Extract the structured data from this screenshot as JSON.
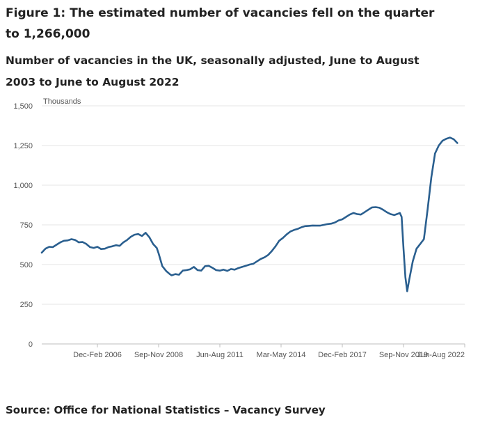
{
  "chart_data": {
    "type": "line",
    "title": "Figure 1: The estimated number of vacancies fell on the quarter to 1,266,000",
    "subtitle": "Number of vacancies in the UK, seasonally adjusted, June to August 2003 to June to August 2022",
    "ylabel": "Thousands",
    "ylim": [
      0,
      1500
    ],
    "yticks": [
      0,
      250,
      500,
      750,
      1000,
      1250,
      1500
    ],
    "ytick_labels": [
      "0",
      "250",
      "500",
      "750",
      "1,000",
      "1,250",
      "1,500"
    ],
    "xlim": [
      0,
      228
    ],
    "xticks": [
      {
        "label": "Dec-Feb 2006",
        "x": 30
      },
      {
        "label": "Sep-Nov 2008",
        "x": 63
      },
      {
        "label": "Jun-Aug 2011",
        "x": 96
      },
      {
        "label": "Mar-May 2014",
        "x": 129
      },
      {
        "label": "Dec-Feb 2017",
        "x": 162
      },
      {
        "label": "Sep-Nov 2019",
        "x": 195
      },
      {
        "label": "Jun-Aug 2022",
        "x": 228
      }
    ],
    "grid": true,
    "series": [
      {
        "line_color": "#2a5f8f",
        "points": [
          [
            0,
            575
          ],
          [
            2,
            600
          ],
          [
            4,
            612
          ],
          [
            6,
            610
          ],
          [
            8,
            625
          ],
          [
            10,
            640
          ],
          [
            12,
            650
          ],
          [
            14,
            652
          ],
          [
            16,
            660
          ],
          [
            18,
            655
          ],
          [
            20,
            640
          ],
          [
            22,
            642
          ],
          [
            24,
            630
          ],
          [
            26,
            610
          ],
          [
            28,
            605
          ],
          [
            30,
            612
          ],
          [
            32,
            598
          ],
          [
            34,
            600
          ],
          [
            36,
            610
          ],
          [
            38,
            615
          ],
          [
            40,
            622
          ],
          [
            42,
            618
          ],
          [
            44,
            640
          ],
          [
            46,
            655
          ],
          [
            48,
            675
          ],
          [
            50,
            688
          ],
          [
            52,
            692
          ],
          [
            54,
            680
          ],
          [
            56,
            700
          ],
          [
            58,
            672
          ],
          [
            60,
            630
          ],
          [
            62,
            605
          ],
          [
            63,
            570
          ],
          [
            65,
            490
          ],
          [
            67,
            460
          ],
          [
            69,
            440
          ],
          [
            70,
            432
          ],
          [
            72,
            440
          ],
          [
            74,
            436
          ],
          [
            76,
            462
          ],
          [
            78,
            465
          ],
          [
            80,
            470
          ],
          [
            82,
            485
          ],
          [
            84,
            465
          ],
          [
            86,
            462
          ],
          [
            88,
            490
          ],
          [
            90,
            492
          ],
          [
            92,
            480
          ],
          [
            94,
            465
          ],
          [
            96,
            462
          ],
          [
            98,
            468
          ],
          [
            100,
            460
          ],
          [
            102,
            472
          ],
          [
            104,
            468
          ],
          [
            106,
            478
          ],
          [
            108,
            485
          ],
          [
            110,
            492
          ],
          [
            112,
            500
          ],
          [
            114,
            505
          ],
          [
            116,
            520
          ],
          [
            118,
            535
          ],
          [
            120,
            545
          ],
          [
            122,
            560
          ],
          [
            124,
            585
          ],
          [
            126,
            615
          ],
          [
            128,
            650
          ],
          [
            130,
            668
          ],
          [
            132,
            690
          ],
          [
            134,
            708
          ],
          [
            136,
            718
          ],
          [
            138,
            725
          ],
          [
            140,
            735
          ],
          [
            142,
            742
          ],
          [
            144,
            744
          ],
          [
            146,
            746
          ],
          [
            148,
            745
          ],
          [
            150,
            745
          ],
          [
            152,
            750
          ],
          [
            154,
            755
          ],
          [
            156,
            758
          ],
          [
            158,
            765
          ],
          [
            160,
            778
          ],
          [
            162,
            785
          ],
          [
            164,
            800
          ],
          [
            166,
            815
          ],
          [
            168,
            825
          ],
          [
            170,
            818
          ],
          [
            172,
            815
          ],
          [
            174,
            830
          ],
          [
            176,
            845
          ],
          [
            178,
            860
          ],
          [
            180,
            862
          ],
          [
            182,
            858
          ],
          [
            184,
            845
          ],
          [
            186,
            830
          ],
          [
            188,
            818
          ],
          [
            190,
            812
          ],
          [
            192,
            820
          ],
          [
            193,
            825
          ],
          [
            194,
            800
          ],
          [
            195,
            600
          ],
          [
            196,
            420
          ],
          [
            197,
            332
          ],
          [
            198,
            400
          ],
          [
            200,
            520
          ],
          [
            202,
            600
          ],
          [
            204,
            630
          ],
          [
            206,
            660
          ],
          [
            208,
            850
          ],
          [
            210,
            1050
          ],
          [
            212,
            1200
          ],
          [
            214,
            1250
          ],
          [
            216,
            1280
          ],
          [
            218,
            1292
          ],
          [
            220,
            1300
          ],
          [
            222,
            1290
          ],
          [
            224,
            1266
          ]
        ]
      }
    ]
  },
  "source": "Source: Office for National Statistics – Vacancy Survey"
}
